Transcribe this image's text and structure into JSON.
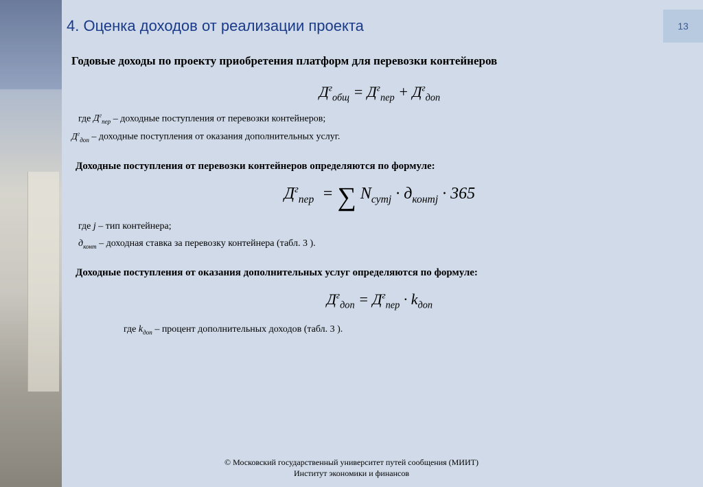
{
  "page_number": "13",
  "section_title": "4. Оценка доходов от реализации проекта",
  "subtitle": "Годовые доходы по проекту приобретения платформ для перевозки контейнеров",
  "formula1_html": "<span class='it'>Д</span><span class='sup'>г</span><span class='sub'>общ</span> = <span class='it'>Д</span><span class='sup'>г</span><span class='sub'>пер</span> + <span class='it'>Д</span><span class='sup'>г</span><span class='sub'>доп</span>",
  "defs1_line1_html": "где <span class='it'>Д<span class='sup'>г</span><span class='sub'>пер</span></span> – доходные поступления от перевозки контейнеров;",
  "defs1_line2_html": "<span class='it'>Д<span class='sup'>г</span><span class='sub'>доп</span></span> – доходные поступления от оказания дополнительных услуг.",
  "heading2": "Доходные поступления от перевозки контейнеров определяются по формуле:",
  "formula2_html": "<span class='it'>Д</span><span class='sup'>г</span><span class='sub'>пер</span>&nbsp; = <span class='sigma'>∑</span> <span class='it'>N</span><span class='sub'>сутj</span> · <span class='it'>д</span><span class='sub'>контj</span> · 365",
  "defs2_line1_html": "где <span class='it'>j</span> – тип контейнера;",
  "defs2_line2_html": "<span class='it'>д<span class='sub'>конт</span></span> – доходная ставка за перевозку контейнера (табл. 3&nbsp;).",
  "heading3": "Доходные поступления от оказания дополнительных услуг определяются по формуле:",
  "formula3_html": "<span class='it'>Д</span><span class='sup'>г</span><span class='sub'>доп</span> = <span class='it'>Д</span><span class='sup'>г</span><span class='sub'>пер</span> · <span class='it'>k</span><span class='sub'>доп</span>",
  "defs3_html": "где <span class='it'>k<span class='sub'>доп</span></span> – процент дополнительных доходов (табл. 3&nbsp;).",
  "footer_line1": "© Московский государственный университет путей сообщения (МИИТ)",
  "footer_line2": "Институт экономики и финансов",
  "colors": {
    "page_bg": "#d0dae8",
    "title_color": "#1a3a8a",
    "pagenum_bg": "#b8cae0"
  }
}
